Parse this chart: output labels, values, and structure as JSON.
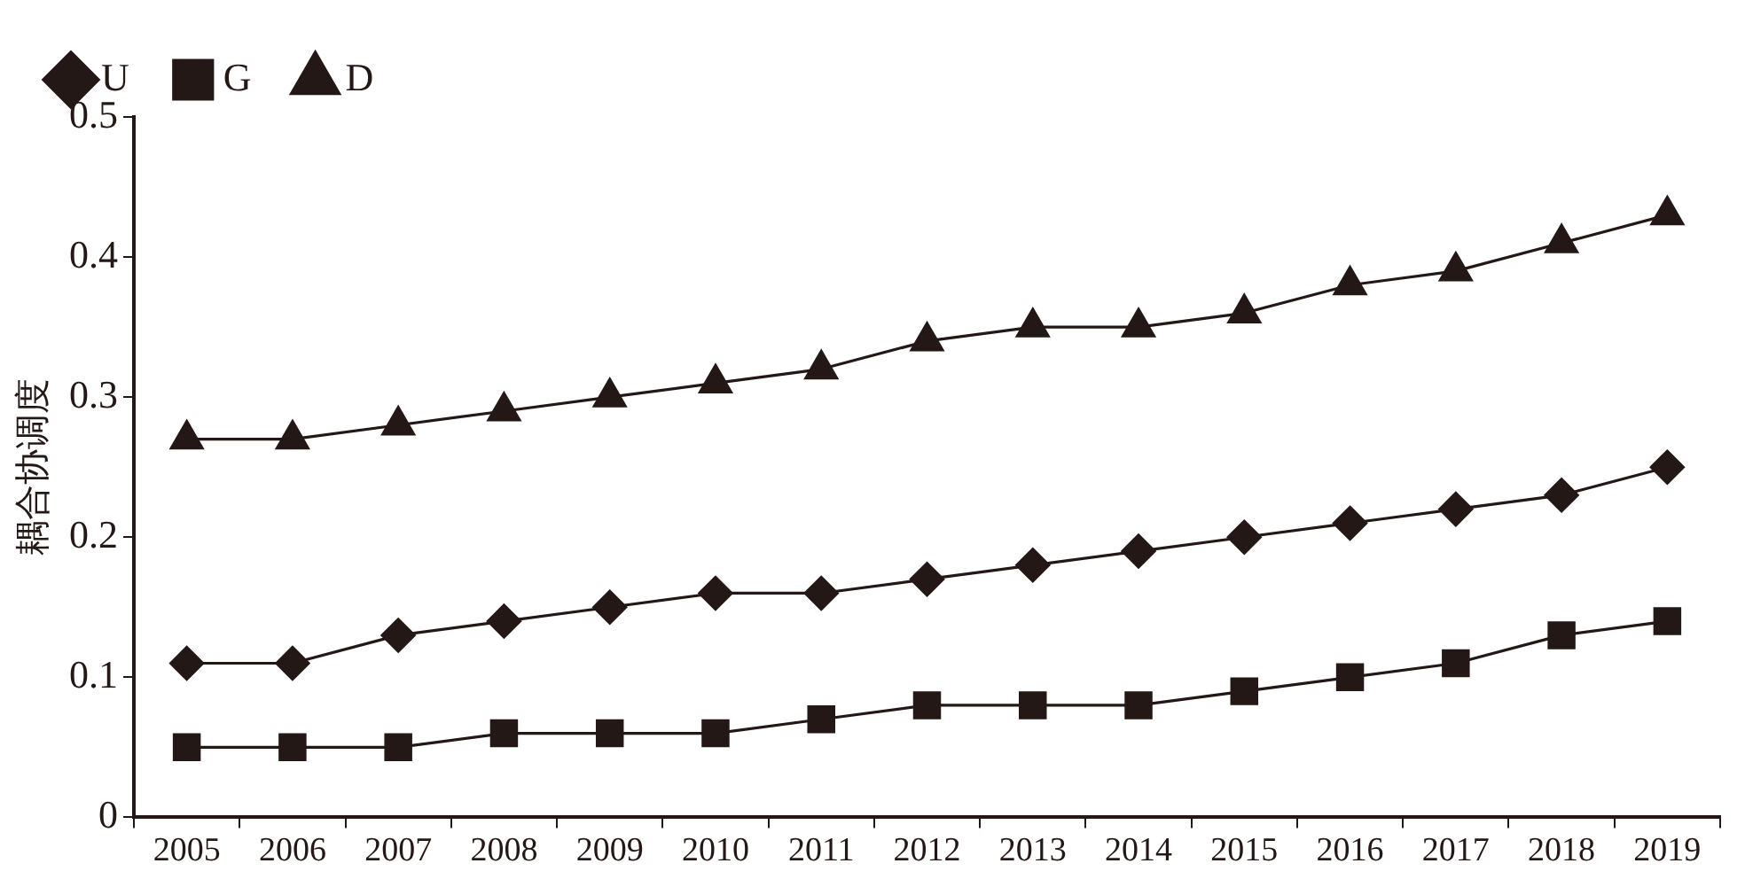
{
  "chart_data": {
    "type": "line",
    "ylabel": "耦合协调度",
    "categories": [
      "2005",
      "2006",
      "2007",
      "2008",
      "2009",
      "2010",
      "2011",
      "2012",
      "2013",
      "2014",
      "2015",
      "2016",
      "2017",
      "2018",
      "2019"
    ],
    "series": [
      {
        "name": "U",
        "color": "#231815",
        "marker": "diamond",
        "values": [
          0.11,
          0.11,
          0.13,
          0.14,
          0.15,
          0.16,
          0.16,
          0.17,
          0.18,
          0.19,
          0.2,
          0.21,
          0.22,
          0.23,
          0.25
        ]
      },
      {
        "name": "G",
        "color": "#231815",
        "marker": "square",
        "values": [
          0.05,
          0.05,
          0.05,
          0.06,
          0.06,
          0.06,
          0.07,
          0.08,
          0.08,
          0.08,
          0.09,
          0.1,
          0.11,
          0.13,
          0.14
        ]
      },
      {
        "name": "D",
        "color": "#231815",
        "marker": "triangle",
        "values": [
          0.27,
          0.27,
          0.28,
          0.29,
          0.3,
          0.31,
          0.32,
          0.34,
          0.35,
          0.35,
          0.36,
          0.38,
          0.39,
          0.41,
          0.43
        ]
      }
    ],
    "ylim": [
      0,
      0.5
    ],
    "yticks": [
      0,
      0.1,
      0.2,
      0.3,
      0.4,
      0.5
    ],
    "grid": false,
    "legend": "top left",
    "line_style": "solid"
  }
}
